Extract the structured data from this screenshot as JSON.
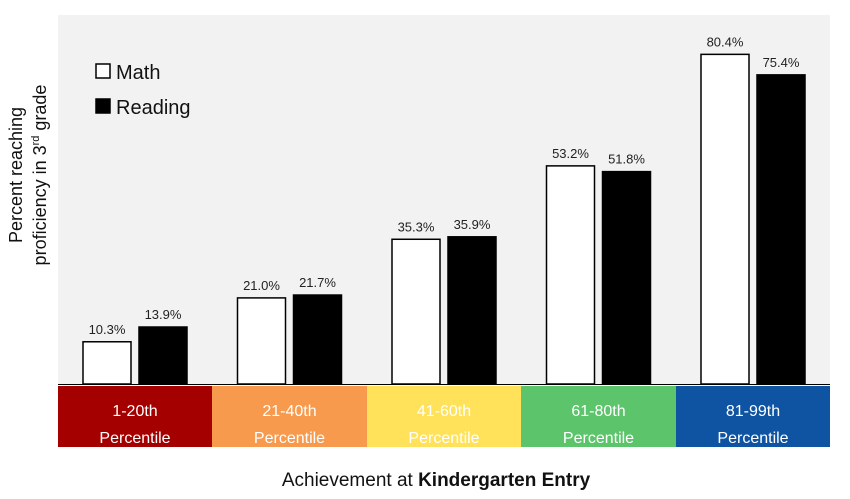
{
  "chart_data": {
    "type": "bar",
    "categories": [
      {
        "line1": "1-20th",
        "line2": "Percentile"
      },
      {
        "line1": "21-40th",
        "line2": "Percentile"
      },
      {
        "line1": "41-60th",
        "line2": "Percentile"
      },
      {
        "line1": "61-80th",
        "line2": "Percentile"
      },
      {
        "line1": "81-99th",
        "line2": "Percentile"
      }
    ],
    "category_colors": [
      "#a50000",
      "#f79a4d",
      "#ffe25a",
      "#5cc46a",
      "#0e54a3"
    ],
    "series": [
      {
        "name": "Math",
        "values": [
          10.3,
          21.0,
          35.3,
          53.2,
          80.4
        ],
        "labels": [
          "10.3%",
          "21.0%",
          "35.3%",
          "53.2%",
          "80.4%"
        ],
        "color": "#ffffff"
      },
      {
        "name": "Reading",
        "values": [
          13.9,
          21.7,
          35.9,
          51.8,
          75.4
        ],
        "labels": [
          "13.9%",
          "21.7%",
          "35.9%",
          "51.8%",
          "75.4%"
        ],
        "color": "#000000"
      }
    ],
    "ylabel_line1": "Percent reaching",
    "ylabel_line2_pre": "proficiency in 3",
    "ylabel_line2_sup": "rd",
    "ylabel_line2_post": " grade",
    "xlabel_pre": "Achievement at ",
    "xlabel_bold": "Kindergarten Entry",
    "ylim": [
      0,
      90
    ],
    "legend_position": "top-left",
    "plot_background": "#f2f2f2"
  }
}
